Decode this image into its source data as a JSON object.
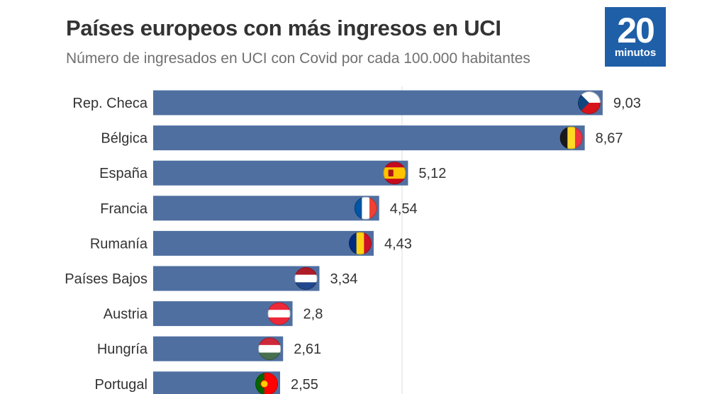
{
  "header": {
    "title": "Países europeos con más ingresos en UCI",
    "subtitle": "Número de ingresados en UCI con Covid por cada 100.000 habitantes"
  },
  "logo": {
    "number": "20",
    "word": "minutos",
    "color": "#1f5fa8"
  },
  "chart_data": {
    "type": "bar",
    "orientation": "horizontal",
    "title": "Países europeos con más ingresos en UCI",
    "subtitle": "Número de ingresados en UCI con Covid por cada 100.000 habitantes",
    "categories": [
      "Rep. Checa",
      "Bélgica",
      "España",
      "Francia",
      "Rumanía",
      "Países Bajos",
      "Austria",
      "Hungría",
      "Portugal"
    ],
    "values": [
      9.03,
      8.67,
      5.12,
      4.54,
      4.43,
      3.34,
      2.8,
      2.61,
      2.55
    ],
    "value_labels": [
      "9,03",
      "8,67",
      "5,12",
      "4,54",
      "4,43",
      "3,34",
      "2,8",
      "2,61",
      "2,55"
    ],
    "flags": [
      "czech-republic-flag",
      "belgium-flag",
      "spain-flag",
      "france-flag",
      "romania-flag",
      "netherlands-flag",
      "austria-flag",
      "hungary-flag",
      "portugal-flag"
    ],
    "xlim": [
      0,
      10
    ],
    "grid": true,
    "bar_color": "#4f6fa0",
    "xlabel": "",
    "ylabel": ""
  }
}
